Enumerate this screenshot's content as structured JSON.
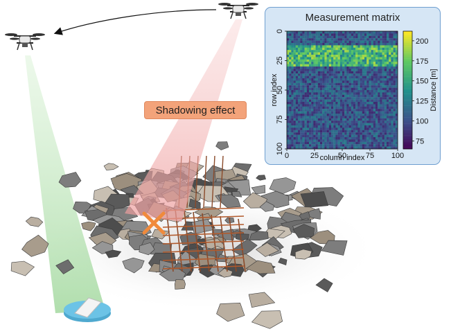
{
  "annotations": {
    "shadowing_label": "Shadowing effect"
  },
  "matrix_panel": {
    "title": "Measurement matrix"
  },
  "chart_data": {
    "type": "heatmap",
    "title": "Measurement matrix",
    "xlabel": "column index",
    "ylabel": "row index",
    "colorbar_label": "Distance [m]",
    "xlim": [
      0,
      100
    ],
    "ylim": [
      100,
      0
    ],
    "xticks": [
      "0",
      "25",
      "50",
      "75",
      "100"
    ],
    "yticks": [
      "0",
      "25",
      "50",
      "75",
      "100"
    ],
    "colorbar_ticks": [
      "75",
      "100",
      "125",
      "150",
      "175",
      "200"
    ],
    "colorbar_range": [
      65,
      212
    ],
    "colormap": "viridis",
    "bands": [
      {
        "rows": [
          0,
          11
        ],
        "mean_distance": 105
      },
      {
        "rows": [
          12,
          29
        ],
        "mean_distance": 160
      },
      {
        "rows": [
          30,
          100
        ],
        "mean_distance": 105
      }
    ]
  },
  "colors": {
    "panel_bg": "#d6e6f5",
    "panel_border": "#6f9fd0",
    "label_bg": "#f3a37a",
    "signal_cone": "#9fd39a",
    "shadow_cone": "#f2a7a7",
    "marker": "#f08a3c",
    "device": "#6cc3e6"
  }
}
